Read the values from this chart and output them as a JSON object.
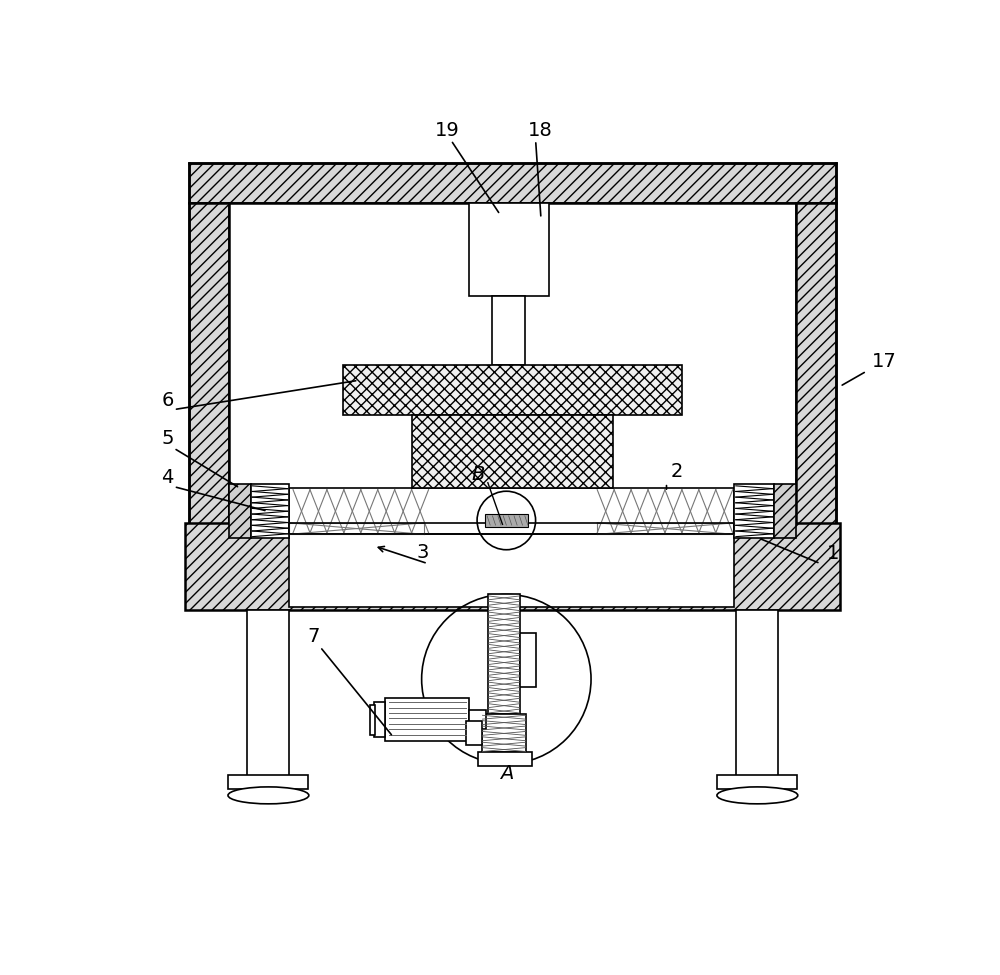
{
  "bg_color": "#ffffff",
  "lc": "#000000",
  "gray_hatch": "#cccccc",
  "figsize": [
    10.0,
    9.75
  ],
  "dpi": 100
}
